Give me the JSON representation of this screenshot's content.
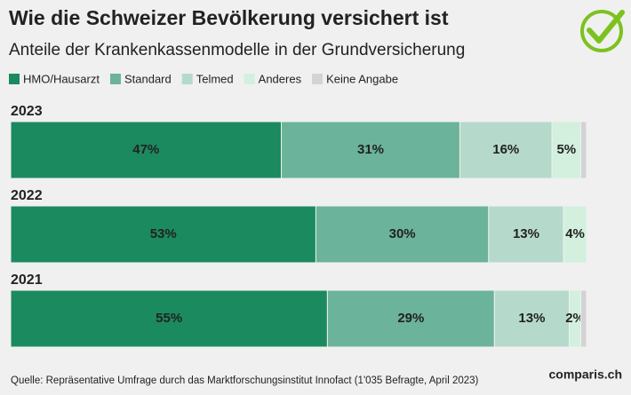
{
  "chart_data": {
    "type": "stacked-bar-horizontal",
    "title": "Wie die Schweizer Bevölkerung versichert ist",
    "subtitle": "Anteile der Krankenkassenmodelle in der Grundversicherung",
    "categories": [
      "2023",
      "2022",
      "2021"
    ],
    "series": [
      {
        "name": "HMO/Hausarzt",
        "color": "#1b8a5f",
        "values": [
          47,
          53,
          55
        ],
        "value_labels": [
          "47%",
          "53%",
          "55%"
        ]
      },
      {
        "name": "Standard",
        "color": "#6bb39a",
        "values": [
          31,
          30,
          29
        ],
        "value_labels": [
          "31%",
          "30%",
          "29%"
        ]
      },
      {
        "name": "Telmed",
        "color": "#b5dacb",
        "values": [
          16,
          13,
          13
        ],
        "value_labels": [
          "16%",
          "13%",
          "13%"
        ]
      },
      {
        "name": "Anderes",
        "color": "#d2f0dd",
        "values": [
          5,
          4,
          2
        ],
        "value_labels": [
          "5%",
          "4%",
          "2%"
        ]
      },
      {
        "name": "Keine Angabe",
        "color": "#d3d3d3",
        "values": [
          1,
          0,
          1
        ],
        "value_labels": [
          null,
          null,
          null
        ]
      }
    ],
    "xlim": [
      0,
      100
    ],
    "legend": "top-left",
    "source": "Quelle: Repräsentative Umfrage durch das Marktforschungsinstitut Innofact (1'035 Befragte, April 2023)",
    "logo": "comparis.ch"
  }
}
